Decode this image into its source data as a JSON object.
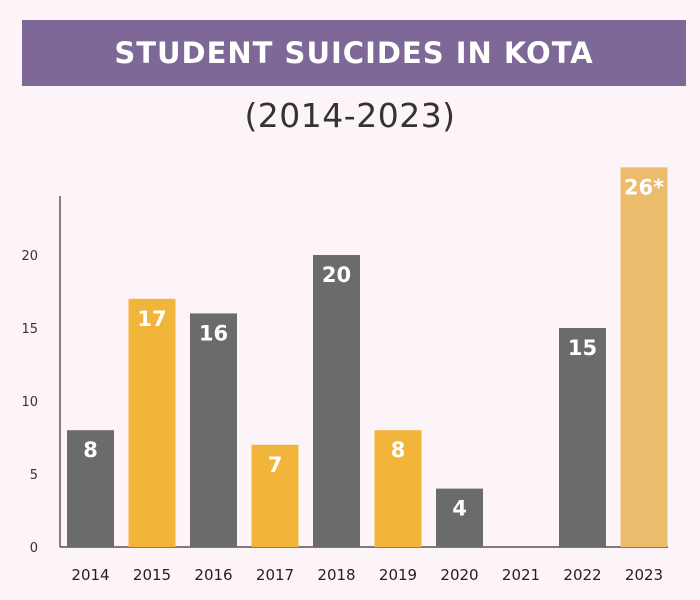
{
  "header": {
    "title": "STUDENT SUICIDES IN KOTA",
    "subtitle": "(2014-2023)"
  },
  "colors": {
    "background": "#fdf4fa",
    "banner": "#7d6898",
    "gray_bar": "#6b6b6b",
    "orange_bar": "#f2b53c",
    "highlight_bar": "#eabc6c",
    "axis": "#333333"
  },
  "chart_data": {
    "type": "bar",
    "title": "STUDENT SUICIDES IN KOTA",
    "subtitle": "(2014-2023)",
    "xlabel": "",
    "ylabel": "",
    "ylim": [
      0,
      26
    ],
    "yticks": [
      0,
      5,
      10,
      15,
      20
    ],
    "grid": false,
    "categories": [
      "2014",
      "2015",
      "2016",
      "2017",
      "2018",
      "2019",
      "2020",
      "2021",
      "2022",
      "2023"
    ],
    "values": [
      8,
      17,
      16,
      7,
      20,
      8,
      4,
      0,
      15,
      26
    ],
    "data_labels": [
      "8",
      "17",
      "16",
      "7",
      "20",
      "8",
      "4",
      "",
      "15",
      "26*"
    ],
    "bar_colors": [
      "gray",
      "orange",
      "gray",
      "orange",
      "gray",
      "orange",
      "gray",
      "gray",
      "gray",
      "highlight"
    ]
  }
}
